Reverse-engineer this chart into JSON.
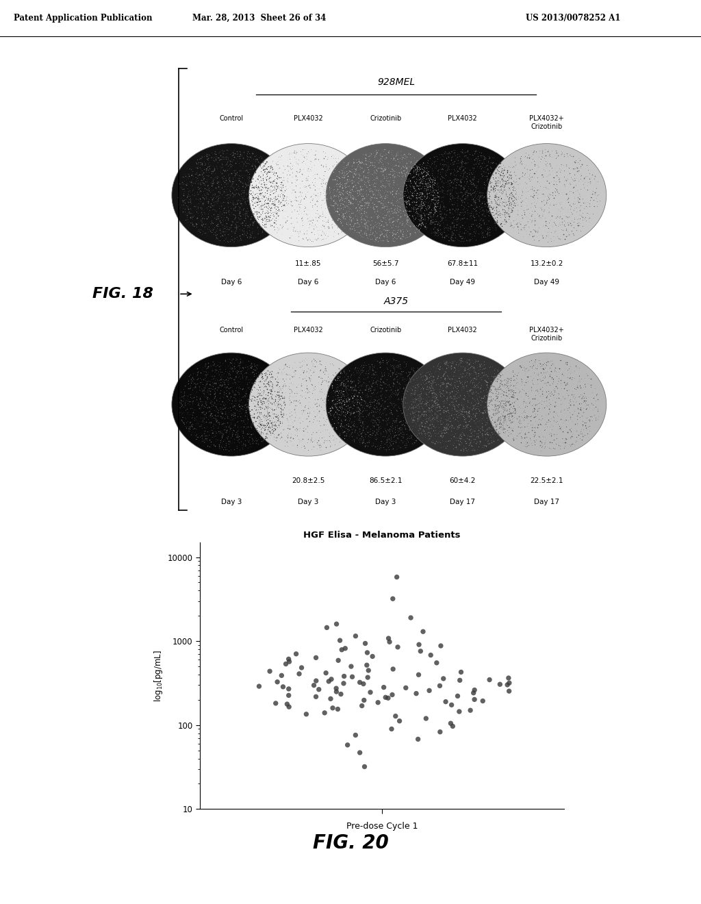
{
  "header_text": "Patent Application Publication",
  "header_date": "Mar. 28, 2013  Sheet 26 of 34",
  "header_patent": "US 2013/0078252 A1",
  "fig18_label": "FIG. 18",
  "fig20_label": "FIG. 20",
  "fig18_title1": "928MEL",
  "fig18_title2": "A375",
  "fig18_col_labels": [
    "Control",
    "PLX4032",
    "Crizotinib",
    "PLX4032",
    "PLX4032+\nCrizotinib"
  ],
  "fig18_row1_values": [
    "",
    "11±.85",
    "56±5.7",
    "67.8±11",
    "13.2±0.2"
  ],
  "fig18_row1_days": [
    "Day 6",
    "Day 6",
    "Day 6",
    "Day 49",
    "Day 49"
  ],
  "fig18_row2_values": [
    "",
    "20.8±2.5",
    "86.5±2.1",
    "60±4.2",
    "22.5±2.1"
  ],
  "fig18_row2_days": [
    "Day 3",
    "Day 3",
    "Day 3",
    "Day 17",
    "Day 17"
  ],
  "fig18_circle_grays_row1": [
    0.08,
    0.92,
    0.38,
    0.05,
    0.78
  ],
  "fig18_circle_grays_row2": [
    0.04,
    0.82,
    0.06,
    0.2,
    0.72
  ],
  "fig20_title": "HGF Elisa - Melanoma Patients",
  "fig20_xlabel": "Pre-dose Cycle 1",
  "fig20_ylabel": "log$_{10}$[pg/mL]",
  "fig20_yticks": [
    10,
    100,
    1000,
    10000
  ],
  "fig20_ytick_labels": [
    "10",
    "100",
    "1000",
    "10000"
  ],
  "fig20_dot_color": "#3a3a3a",
  "fig20_dot_size": 28,
  "fig20_data": [
    5800,
    3200,
    1900,
    1600,
    1450,
    1300,
    1150,
    1080,
    1020,
    980,
    940,
    910,
    880,
    850,
    820,
    790,
    760,
    730,
    705,
    682,
    658,
    635,
    612,
    590,
    570,
    552,
    535,
    518,
    500,
    483,
    465,
    448,
    438,
    428,
    418,
    408,
    398,
    390,
    382,
    376,
    370,
    364,
    358,
    352,
    347,
    342,
    337,
    332,
    327,
    323,
    318,
    314,
    310,
    306,
    302,
    298,
    294,
    290,
    286,
    282,
    278,
    274,
    270,
    266,
    262,
    258,
    254,
    250,
    246,
    242,
    238,
    234,
    230,
    226,
    222,
    218,
    214,
    210,
    206,
    202,
    198,
    194,
    190,
    186,
    182,
    178,
    174,
    170,
    165,
    160,
    155,
    150,
    145,
    140,
    135,
    128,
    120,
    112,
    105,
    97,
    90,
    83,
    76,
    68,
    58,
    47,
    32
  ]
}
